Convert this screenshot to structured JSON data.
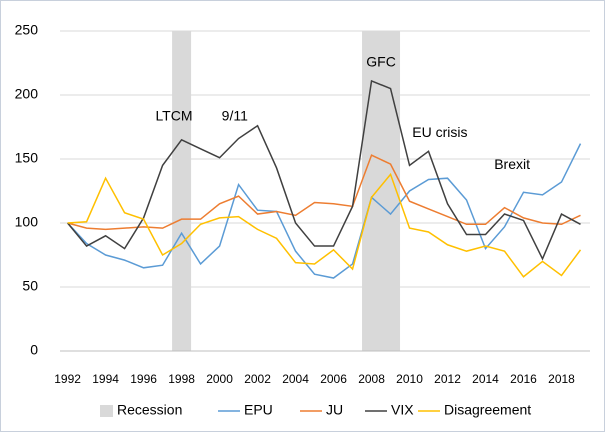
{
  "chart_data": {
    "type": "line",
    "x": [
      1992,
      1993,
      1994,
      1995,
      1996,
      1997,
      1998,
      1999,
      2000,
      2001,
      2002,
      2003,
      2004,
      2005,
      2006,
      2007,
      2008,
      2009,
      2010,
      2011,
      2012,
      2013,
      2014,
      2015,
      2016,
      2017,
      2018,
      2019
    ],
    "series": [
      {
        "name": "EPU",
        "color": "#5b9bd5",
        "values": [
          100,
          84,
          75,
          71,
          65,
          67,
          92,
          68,
          82,
          130,
          110,
          109,
          78,
          60,
          57,
          68,
          120,
          107,
          125,
          134,
          135,
          118,
          80,
          97,
          124,
          122,
          132,
          162
        ]
      },
      {
        "name": "JU",
        "color": "#ed7d31",
        "values": [
          100,
          96,
          95,
          96,
          97,
          96,
          103,
          103,
          115,
          121,
          107,
          109,
          106,
          116,
          115,
          113,
          153,
          146,
          117,
          111,
          105,
          99,
          99,
          112,
          104,
          100,
          99,
          106
        ]
      },
      {
        "name": "VIX",
        "color": "#404040",
        "values": [
          100,
          82,
          90,
          80,
          104,
          145,
          165,
          158,
          151,
          166,
          176,
          143,
          100,
          82,
          82,
          113,
          211,
          205,
          145,
          156,
          115,
          91,
          91,
          107,
          102,
          72,
          107,
          99
        ]
      },
      {
        "name": "Disagreement",
        "color": "#ffc000",
        "values": [
          100,
          101,
          135,
          108,
          103,
          75,
          84,
          99,
          104,
          105,
          95,
          88,
          69,
          68,
          79,
          64,
          120,
          138,
          96,
          93,
          83,
          78,
          82,
          78,
          58,
          70,
          59,
          79
        ]
      }
    ],
    "shading": {
      "name": "Recession",
      "color": "#d9d9d9",
      "spans": [
        [
          1997.5,
          1998.5
        ],
        [
          2007.5,
          2009.5
        ]
      ]
    },
    "annotations": [
      {
        "text": "LTCM",
        "x": 1997.6,
        "y": 183
      },
      {
        "text": "9/11",
        "x": 2000.8,
        "y": 183
      },
      {
        "text": "GFC",
        "x": 2008.5,
        "y": 225
      },
      {
        "text": "EU crisis",
        "x": 2011.6,
        "y": 170
      },
      {
        "text": "Brexit",
        "x": 2015.4,
        "y": 145
      }
    ],
    "xlim": [
      1991.6,
      2019.5
    ],
    "xticks": [
      1992,
      1994,
      1996,
      1998,
      2000,
      2002,
      2004,
      2006,
      2008,
      2010,
      2012,
      2014,
      2016,
      2018
    ],
    "ylim": [
      0,
      250
    ],
    "yticks": [
      0,
      50,
      100,
      150,
      200,
      250
    ],
    "grid": true,
    "legend": "bottom"
  }
}
